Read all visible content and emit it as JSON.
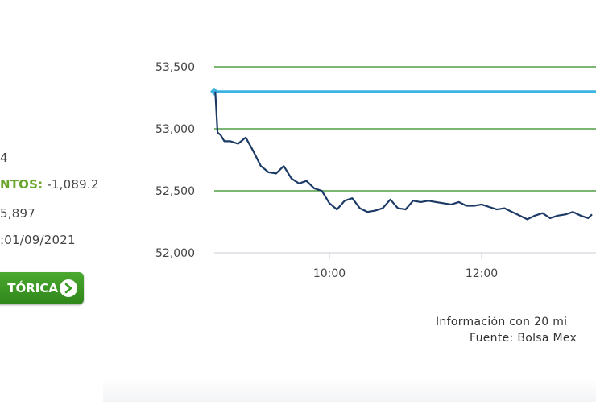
{
  "summary": {
    "line1": "4",
    "points_label": "NTOS:",
    "points_value": " -1,089.2",
    "line3": "5,897",
    "date": ":01/09/2021",
    "history_button": "TÓRICA"
  },
  "chart_data": {
    "type": "line",
    "x_ticks": [
      "10:00",
      "12:00"
    ],
    "y_ticks": [
      "53,500",
      "53,000",
      "52,500",
      "52,000"
    ],
    "ylim": [
      52000,
      53500
    ],
    "grid": "horizontal",
    "reference_value": 53300,
    "series": [
      {
        "x": [
          8.5,
          8.53,
          8.57,
          8.62,
          8.7,
          8.8,
          8.9,
          9.0,
          9.1,
          9.2,
          9.3,
          9.4,
          9.5,
          9.6,
          9.7,
          9.8,
          9.9,
          10.0,
          10.1,
          10.2,
          10.3,
          10.4,
          10.5,
          10.6,
          10.7,
          10.8,
          10.9,
          11.0,
          11.1,
          11.2,
          11.3,
          11.4,
          11.5,
          11.6,
          11.7,
          11.8,
          11.9,
          12.0,
          12.1,
          12.2,
          12.3,
          12.4,
          12.5,
          12.6,
          12.7,
          12.8,
          12.9,
          13.0,
          13.1,
          13.2,
          13.3,
          13.4,
          13.45
        ],
        "values": [
          53300,
          52970,
          52950,
          52900,
          52900,
          52880,
          52930,
          52820,
          52700,
          52650,
          52640,
          52700,
          52600,
          52560,
          52580,
          52520,
          52500,
          52400,
          52350,
          52420,
          52440,
          52360,
          52330,
          52340,
          52360,
          52430,
          52360,
          52350,
          52420,
          52410,
          52420,
          52410,
          52400,
          52390,
          52410,
          52380,
          52380,
          52390,
          52370,
          52350,
          52360,
          52330,
          52300,
          52270,
          52300,
          52320,
          52280,
          52300,
          52310,
          52330,
          52300,
          52280,
          52310
        ]
      }
    ]
  },
  "notes": {
    "delay": "Información con 20 mi",
    "source": "Fuente: Bolsa Mex"
  },
  "colors": {
    "grid": "#2e8b1e",
    "series": "#1c3a66",
    "reference": "#3cb3e0",
    "accent": "#6aa52c"
  }
}
